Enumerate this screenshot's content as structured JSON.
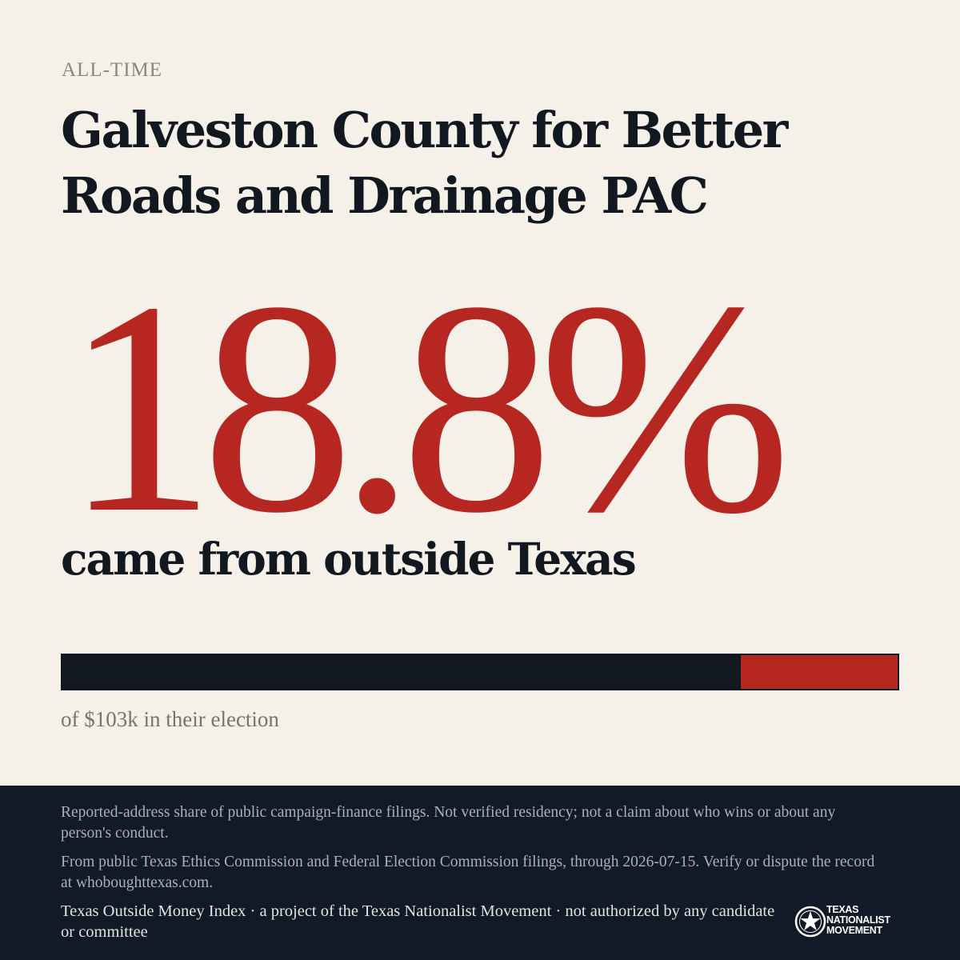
{
  "eyebrow": "ALL-TIME",
  "title": "Galveston County for Better Roads and Drainage PAC",
  "stat": {
    "value": "18.8%",
    "caption": "came from outside Texas"
  },
  "bar": {
    "outside_share": 0.188,
    "note": "of $103k in their election",
    "inside_color": "#121820",
    "outside_color": "#b52720"
  },
  "footer": {
    "disclaimer": "Reported-address share of public campaign-finance filings. Not verified residency; not a claim about who wins or about any person's conduct.",
    "source": "From public Texas Ethics Commission and Federal Election Commission filings, through 2026-07-15. Verify or dispute the record at whoboughttexas.com.",
    "credit": "Texas Outside Money Index · a project of the Texas Nationalist Movement · not authorized by any candidate or committee"
  },
  "logo": {
    "icon": "star-seal-icon",
    "lines": [
      "TEXAS",
      "NATIONALIST",
      "MOVEMENT"
    ]
  },
  "colors": {
    "background": "#f5f0e8",
    "accent": "#b52720",
    "ink": "#121820",
    "footer": "#111b28"
  }
}
